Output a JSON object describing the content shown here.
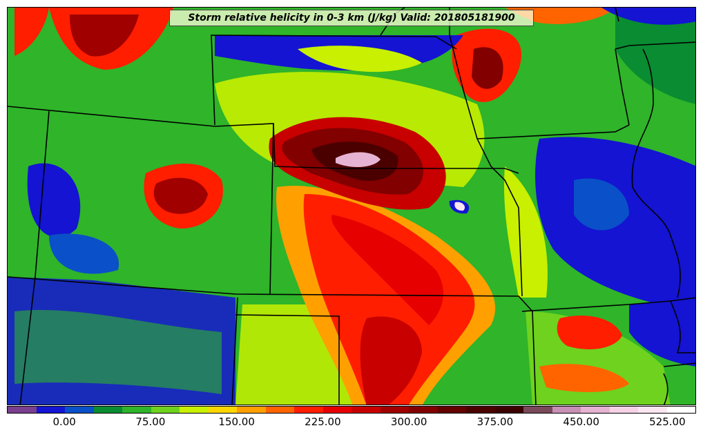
{
  "title": "Storm relative helicity in 0-3 km (J/kg) Valid: 201805181900",
  "colorbar": {
    "colors": [
      "#7b3f8f",
      "#1414d2",
      "#0a50c8",
      "#0a8c32",
      "#2fb42a",
      "#6ed21e",
      "#c8f000",
      "#ffd700",
      "#ffa000",
      "#ff6400",
      "#ff1e00",
      "#e60000",
      "#c80000",
      "#a00000",
      "#820000",
      "#640000",
      "#4b0000",
      "#3c0000",
      "#7a4a5a",
      "#c890b4",
      "#e6b4d2",
      "#f5d2e6",
      "#fae6f0",
      "#ffffff"
    ],
    "ticks": [
      "0.00",
      "75.00",
      "150.00",
      "225.00",
      "300.00",
      "375.00",
      "450.00",
      "525.00"
    ]
  },
  "map_colors": {
    "low": "#1414d2",
    "mid_low": "#0a8c32",
    "mid": "#2fb42a",
    "yellowgreen": "#c8f000",
    "orange": "#ffa000",
    "red": "#ff1e00",
    "dark_red": "#a00000",
    "very_dark": "#4b0000",
    "pink": "#e6b4d2",
    "border": "#000000"
  }
}
